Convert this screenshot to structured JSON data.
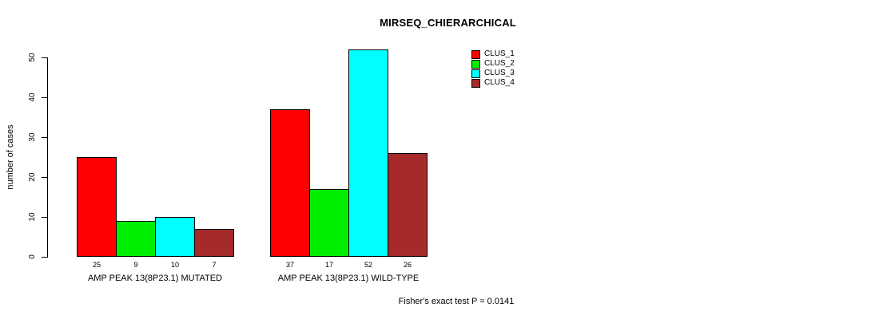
{
  "chart_data": {
    "type": "bar",
    "title": "MIRSEQ_CHIERARCHICAL",
    "ylabel": "number of cases",
    "xlabel": "",
    "ylim": [
      0,
      52
    ],
    "yticks": [
      0,
      10,
      20,
      30,
      40,
      50
    ],
    "grid": false,
    "legend_position": "top-right",
    "categories": [
      "AMP PEAK 13(8P23.1) MUTATED",
      "AMP PEAK 13(8P23.1) WILD-TYPE"
    ],
    "series": [
      {
        "name": "CLUS_1",
        "color": "#FF0000",
        "values": [
          25,
          37
        ]
      },
      {
        "name": "CLUS_2",
        "color": "#00EE00",
        "values": [
          9,
          17
        ]
      },
      {
        "name": "CLUS_3",
        "color": "#00FFFF",
        "values": [
          10,
          52
        ]
      },
      {
        "name": "CLUS_4",
        "color": "#A52A2A",
        "values": [
          7,
          26
        ]
      }
    ],
    "bar_value_labels": [
      [
        25,
        9,
        10,
        7
      ],
      [
        37,
        17,
        52,
        26
      ]
    ],
    "annotation": "Fisher's exact test P = 0.0141",
    "axis_color": "#000000",
    "bar_border_color": "#000000",
    "background_color": "#FFFFFF"
  }
}
